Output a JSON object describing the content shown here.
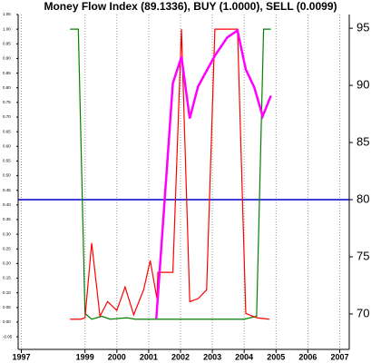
{
  "chart_data": {
    "type": "line",
    "title": "Money Flow Index (89.1336), BUY (1.0000), SELL (0.0099)",
    "xlim": [
      1996.9,
      2007.3
    ],
    "xticks": [
      1997,
      1999,
      2000,
      2001,
      2002,
      2003,
      2004,
      2005,
      2006,
      2007
    ],
    "ylim": [
      -0.093,
      1.05
    ],
    "yticks": [
      {
        "value": 1.05,
        "label": "1.05"
      },
      {
        "value": 1.0,
        "label": "1.00"
      },
      {
        "value": 0.95,
        "label": "0.95"
      },
      {
        "value": 0.9,
        "label": "0.90"
      },
      {
        "value": 0.85,
        "label": "0.85"
      },
      {
        "value": 0.8,
        "label": "0.80"
      },
      {
        "value": 0.75,
        "label": "0.75"
      },
      {
        "value": 0.7,
        "label": "0.70"
      },
      {
        "value": 0.65,
        "label": "0.65"
      },
      {
        "value": 0.6,
        "label": "0.60"
      },
      {
        "value": 0.55,
        "label": "0.55"
      },
      {
        "value": 0.5,
        "label": "0.50"
      },
      {
        "value": 0.45,
        "label": "0.45"
      },
      {
        "value": 0.4,
        "label": "0.40"
      },
      {
        "value": 0.35,
        "label": "0.35"
      },
      {
        "value": 0.3,
        "label": "0.30"
      },
      {
        "value": 0.25,
        "label": "0.25"
      },
      {
        "value": 0.2,
        "label": "0.20"
      },
      {
        "value": 0.15,
        "label": "0.15"
      },
      {
        "value": 0.1,
        "label": "0.10"
      },
      {
        "value": 0.05,
        "label": "0.05"
      },
      {
        "value": 0.0,
        "label": "0.00"
      },
      {
        "value": -0.05,
        "label": "-0.05"
      }
    ],
    "y2lim": [
      66.9,
      96.2
    ],
    "y2ticks": [
      95,
      90,
      85,
      80,
      75,
      70
    ],
    "grid": true,
    "hline": {
      "value": 80,
      "color": "#0000cc",
      "axis": "y2"
    },
    "series": [
      {
        "color": "#008000",
        "x": [
          1998.53,
          1998.79,
          1999.0,
          1999.21,
          1999.53,
          1999.79,
          2000.32,
          2000.58,
          2004.0,
          2004.39,
          2004.61,
          2004.84
        ],
        "values": [
          1.0,
          1.0,
          0.03,
          0.01,
          0.02,
          0.01,
          0.015,
          0.01,
          0.01,
          0.02,
          1.0,
          1.0
        ]
      },
      {
        "color": "#ff0000",
        "x": [
          1998.53,
          1998.87,
          1999.0,
          1999.21,
          1999.47,
          1999.71,
          2000.0,
          2000.26,
          2000.53,
          2000.84,
          2001.05,
          2001.26,
          2001.29,
          2001.76,
          2002.03,
          2002.29,
          2002.55,
          2002.82,
          2003.08,
          2003.79,
          2004.05,
          2004.39,
          2004.79
        ],
        "values": [
          0.01,
          0.01,
          0.015,
          0.27,
          0.02,
          0.07,
          0.04,
          0.12,
          0.025,
          0.11,
          0.21,
          0.08,
          0.17,
          0.17,
          1.0,
          0.07,
          0.08,
          0.11,
          1.0,
          1.0,
          0.03,
          0.015,
          0.01
        ]
      },
      {
        "color": "#ff00ff",
        "axis": "y2",
        "x": [
          2001.24,
          2001.76,
          2002.03,
          2002.29,
          2002.55,
          2003.08,
          2003.47,
          2003.79,
          2004.05,
          2004.32,
          2004.58,
          2004.84
        ],
        "values": [
          69.6,
          90.2,
          92.5,
          87.1,
          89.9,
          92.6,
          94.2,
          94.8,
          91.4,
          89.8,
          87.3,
          89.1
        ]
      }
    ]
  }
}
